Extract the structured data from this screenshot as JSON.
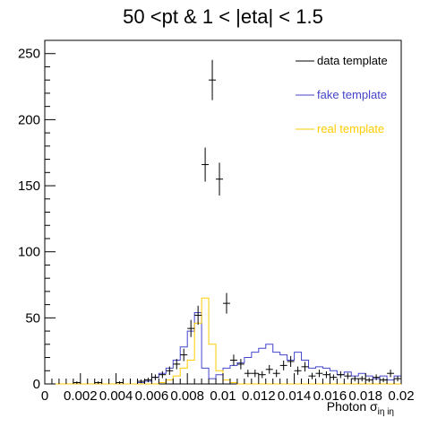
{
  "chart_data": {
    "type": "line",
    "title": "50 <pt  & 1 < |eta| < 1.5",
    "xlabel": {
      "main": "Photon σ",
      "sub": "iη iη"
    },
    "ylabel": "",
    "xlim": [
      0,
      0.02
    ],
    "ylim": [
      0,
      260
    ],
    "x_tick_labels": [
      "0",
      "0.002",
      "0.004",
      "0.006",
      "0.008",
      "0.01",
      "0.012",
      "0.014",
      "0.016",
      "0.018",
      "0.02"
    ],
    "x_tick_values": [
      0,
      0.002,
      0.004,
      0.006,
      0.008,
      0.01,
      0.012,
      0.014,
      0.016,
      0.018,
      0.02
    ],
    "y_ticks": [
      0,
      50,
      100,
      150,
      200,
      250
    ],
    "bin_width": 0.0004,
    "grid": false,
    "legend_position": "top-right",
    "legend": [
      {
        "name": "data template",
        "color": "#000000"
      },
      {
        "name": "fake template",
        "color": "#4444cc"
      },
      {
        "name": "real template",
        "color": "#ffcc00"
      }
    ],
    "series": [
      {
        "name": "data template",
        "style": "errorbar",
        "color": "#000000",
        "x": [
          0.0018,
          0.003,
          0.0042,
          0.0054,
          0.0058,
          0.0062,
          0.0066,
          0.007,
          0.0074,
          0.0078,
          0.0082,
          0.0086,
          0.009,
          0.0094,
          0.0098,
          0.0102,
          0.0106,
          0.011,
          0.0114,
          0.0118,
          0.0122,
          0.0126,
          0.013,
          0.0134,
          0.0138,
          0.0142,
          0.0146,
          0.015,
          0.0154,
          0.0158,
          0.0162,
          0.0166,
          0.017,
          0.0174,
          0.0178,
          0.0182,
          0.0186,
          0.019,
          0.0194,
          0.0198
        ],
        "y": [
          1,
          1,
          1,
          2,
          3,
          5,
          7,
          10,
          15,
          22,
          42,
          52,
          166,
          230,
          155,
          61,
          18,
          15,
          8,
          8,
          7,
          11,
          8,
          14,
          17,
          10,
          13,
          6,
          8,
          7,
          5,
          7,
          6,
          4,
          4,
          3,
          5,
          3,
          8,
          4
        ],
        "yerr": [
          1,
          1,
          1,
          1.4,
          1.7,
          2.2,
          2.6,
          3.2,
          3.9,
          4.7,
          6.5,
          7.2,
          12.9,
          15.2,
          12.4,
          7.8,
          4.2,
          3.9,
          2.8,
          2.8,
          2.6,
          3.3,
          2.8,
          3.7,
          4.1,
          3.2,
          3.6,
          2.4,
          2.8,
          2.6,
          2.2,
          2.6,
          2.4,
          2,
          2,
          1.7,
          2.2,
          1.7,
          2.8,
          2
        ]
      },
      {
        "name": "fake template",
        "style": "step",
        "color": "#4444cc",
        "values": [
          0,
          0,
          0,
          0,
          0,
          0,
          0,
          0,
          0,
          0,
          0,
          0,
          0,
          1,
          2,
          5,
          8,
          12,
          18,
          28,
          40,
          54,
          12,
          4,
          7,
          12,
          14,
          16,
          20,
          24,
          27,
          30,
          24,
          22,
          18,
          24,
          18,
          12,
          13,
          12,
          10,
          7,
          9,
          6,
          8,
          6,
          4,
          6,
          3,
          6
        ]
      },
      {
        "name": "real template",
        "style": "step",
        "color": "#ffcc00",
        "values": [
          0,
          0,
          0,
          0,
          0,
          0,
          0,
          0,
          0,
          0,
          0,
          0,
          0,
          0,
          0,
          0,
          1,
          3,
          6,
          12,
          18,
          46,
          65,
          30,
          10,
          3,
          1,
          0,
          0,
          0,
          0,
          0,
          0,
          0,
          0,
          0,
          0,
          0,
          0,
          0,
          0,
          0,
          0,
          0,
          0,
          0,
          0,
          0,
          0,
          0
        ]
      }
    ]
  }
}
